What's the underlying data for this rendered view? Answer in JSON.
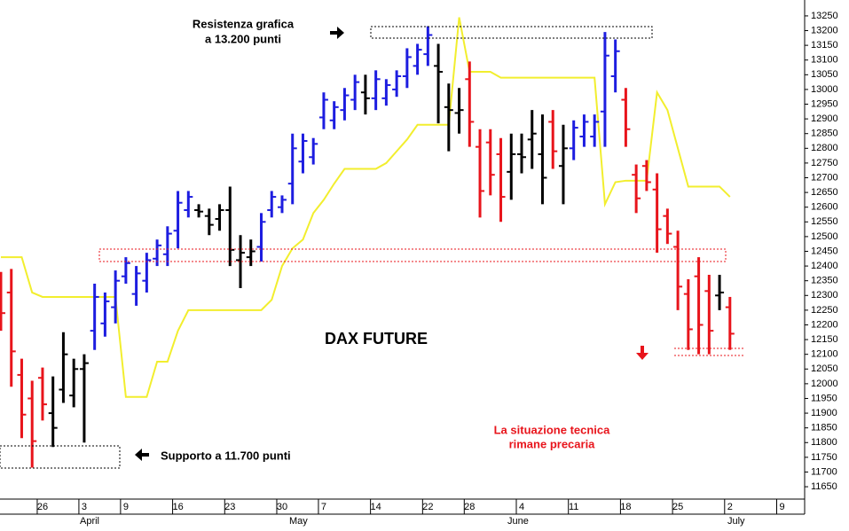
{
  "chart_data": {
    "type": "ohlc",
    "title": "DAX FUTURE",
    "annotations": {
      "resistance": [
        "Resistenza grafica",
        "a 13.200 punti"
      ],
      "support": "Supporto a 11.700 punti",
      "comment": [
        "La situazione tecnica",
        "rimane precaria"
      ]
    },
    "categories": [
      null,
      null,
      null,
      null,
      "26",
      null,
      null,
      null,
      "3",
      null,
      null,
      null,
      "9",
      null,
      null,
      null,
      null,
      "16",
      null,
      null,
      null,
      null,
      "23",
      null,
      null,
      null,
      null,
      "30",
      null,
      null,
      null,
      "7",
      null,
      null,
      null,
      null,
      "14",
      null,
      null,
      null,
      null,
      "22",
      null,
      null,
      null,
      "28",
      null,
      null,
      null,
      null,
      "4",
      null,
      null,
      null,
      null,
      "11",
      null,
      null,
      null,
      null,
      "18",
      null,
      null,
      null,
      null,
      "25",
      null,
      null,
      null,
      null,
      "2",
      null,
      null,
      null,
      null,
      "9",
      null,
      null
    ],
    "months": [
      "April",
      "May",
      "June",
      "July"
    ],
    "ohlc": {
      "open": [
        12340,
        12310,
        12030,
        11950,
        12020,
        11900,
        11980,
        11960,
        12050,
        12180,
        12205,
        12260,
        12365,
        12305,
        12350,
        12425,
        12440,
        12520,
        12590,
        12590,
        12570,
        12560,
        12590,
        12420,
        12430,
        12465,
        12590,
        12600,
        12680,
        12755,
        12770,
        12905,
        12895,
        12930,
        12965,
        12990,
        12970,
        12970,
        13000,
        13045,
        13080,
        13120,
        13080,
        12940,
        12920,
        13035,
        12805,
        12820,
        12780,
        12720,
        12780,
        12830,
        12780,
        12890,
        12740,
        12800,
        12840,
        12840,
        12925,
        13045,
        12965,
        12710,
        12740,
        12660,
        12570,
        12465,
        12305,
        12365,
        12315,
        12300,
        12260,
        null,
        null,
        null,
        null,
        null,
        null,
        null
      ],
      "high": [
        12380,
        12390,
        12085,
        12010,
        12055,
        12025,
        12175,
        12085,
        12100,
        12340,
        12310,
        12385,
        12430,
        12400,
        12445,
        12490,
        12535,
        12655,
        12655,
        12610,
        12595,
        12610,
        12670,
        12505,
        12490,
        12580,
        12655,
        12640,
        12850,
        12850,
        12835,
        12990,
        12960,
        13005,
        13050,
        13050,
        13065,
        13035,
        13065,
        13140,
        13155,
        13215,
        13155,
        13020,
        13005,
        13095,
        12865,
        12865,
        12835,
        12850,
        12850,
        12930,
        12915,
        12930,
        12880,
        12895,
        12915,
        12915,
        13195,
        13170,
        13005,
        12745,
        12760,
        12715,
        12595,
        12520,
        12355,
        12430,
        12370,
        12370,
        12295,
        null,
        null,
        null,
        null,
        null,
        null,
        null
      ],
      "low": [
        12180,
        11990,
        11815,
        11715,
        11875,
        11785,
        11935,
        11920,
        11800,
        12115,
        12160,
        12205,
        12340,
        12265,
        12310,
        12400,
        12400,
        12460,
        12565,
        12565,
        12505,
        12520,
        12400,
        12325,
        12400,
        12415,
        12565,
        12580,
        12610,
        12715,
        12745,
        12865,
        12865,
        12895,
        12930,
        12915,
        12930,
        12945,
        12975,
        13005,
        13050,
        13080,
        12885,
        12790,
        12850,
        12805,
        12565,
        12640,
        12550,
        12625,
        12715,
        12730,
        12610,
        12730,
        12610,
        12760,
        12805,
        12805,
        12805,
        12990,
        12805,
        12580,
        12655,
        12445,
        12475,
        12250,
        12115,
        12100,
        12100,
        12250,
        12115,
        null,
        null,
        null,
        null,
        null,
        null,
        null
      ],
      "close": [
        12240,
        12110,
        11895,
        11805,
        11930,
        11850,
        12100,
        12050,
        12070,
        12295,
        12280,
        12350,
        12410,
        12375,
        12420,
        12470,
        12510,
        12615,
        12635,
        12585,
        12540,
        12590,
        12455,
        12445,
        12450,
        12550,
        12635,
        12625,
        12800,
        12825,
        12815,
        12965,
        12940,
        12980,
        13025,
        12970,
        13035,
        13015,
        13045,
        13110,
        13135,
        13185,
        13060,
        12930,
        12930,
        12890,
        12655,
        12710,
        12635,
        12780,
        12770,
        12850,
        12700,
        12790,
        12800,
        12870,
        12890,
        12890,
        13115,
        13130,
        12865,
        12630,
        12685,
        12525,
        12510,
        12330,
        12185,
        12200,
        12180,
        12310,
        12170,
        null,
        null,
        null,
        null,
        null,
        null,
        null
      ],
      "colors": [
        "#e8141b",
        "#e8141b",
        "#e8141b",
        "#e8141b",
        "#e8141b",
        "#000000",
        "#000000",
        "#000000",
        "#000000",
        "#1d1de0",
        "#1d1de0",
        "#1d1de0",
        "#1d1de0",
        "#1d1de0",
        "#1d1de0",
        "#1d1de0",
        "#1d1de0",
        "#1d1de0",
        "#1d1de0",
        "#000000",
        "#000000",
        "#000000",
        "#000000",
        "#000000",
        "#000000",
        "#1d1de0",
        "#1d1de0",
        "#1d1de0",
        "#1d1de0",
        "#1d1de0",
        "#1d1de0",
        "#1d1de0",
        "#1d1de0",
        "#1d1de0",
        "#1d1de0",
        "#000000",
        "#1d1de0",
        "#1d1de0",
        "#1d1de0",
        "#1d1de0",
        "#1d1de0",
        "#1d1de0",
        "#000000",
        "#000000",
        "#000000",
        "#e8141b",
        "#e8141b",
        "#e8141b",
        "#e8141b",
        "#000000",
        "#000000",
        "#000000",
        "#000000",
        "#e8141b",
        "#000000",
        "#1d1de0",
        "#1d1de0",
        "#1d1de0",
        "#1d1de0",
        "#1d1de0",
        "#e8141b",
        "#e8141b",
        "#e8141b",
        "#e8141b",
        "#e8141b",
        "#e8141b",
        "#e8141b",
        "#e8141b",
        "#e8141b",
        "#000000",
        "#e8141b",
        null,
        null,
        null,
        null,
        null,
        null,
        null
      ]
    },
    "line": {
      "color": "#f2ee2e",
      "values": [
        12430,
        12430,
        12430,
        12310,
        12295,
        12295,
        12295,
        12295,
        12295,
        12295,
        12295,
        12295,
        11955,
        11955,
        11955,
        12075,
        12075,
        12180,
        12250,
        12250,
        12250,
        12250,
        12250,
        12250,
        12250,
        12250,
        12285,
        12400,
        12460,
        12490,
        12580,
        12625,
        12680,
        12730,
        12730,
        12730,
        12730,
        12750,
        12790,
        12830,
        12880,
        12880,
        12880,
        12880,
        13245,
        13060,
        13060,
        13060,
        13040,
        13040,
        13040,
        13040,
        13040,
        13040,
        13040,
        13040,
        13040,
        13040,
        12610,
        12685,
        12690,
        12690,
        12690,
        12990,
        12930,
        12800,
        12670,
        12670,
        12670,
        12670,
        12635,
        null,
        null,
        null,
        null,
        null,
        null,
        null
      ]
    },
    "ylim": [
      11608,
      13304
    ],
    "yticks": [
      11650,
      11700,
      11750,
      11800,
      11850,
      11900,
      11950,
      12000,
      12050,
      12100,
      12150,
      12200,
      12250,
      12300,
      12350,
      12400,
      12450,
      12500,
      12550,
      12600,
      12650,
      12700,
      12750,
      12800,
      12850,
      12900,
      12950,
      13000,
      13050,
      13100,
      13150,
      13200,
      13250
    ]
  }
}
